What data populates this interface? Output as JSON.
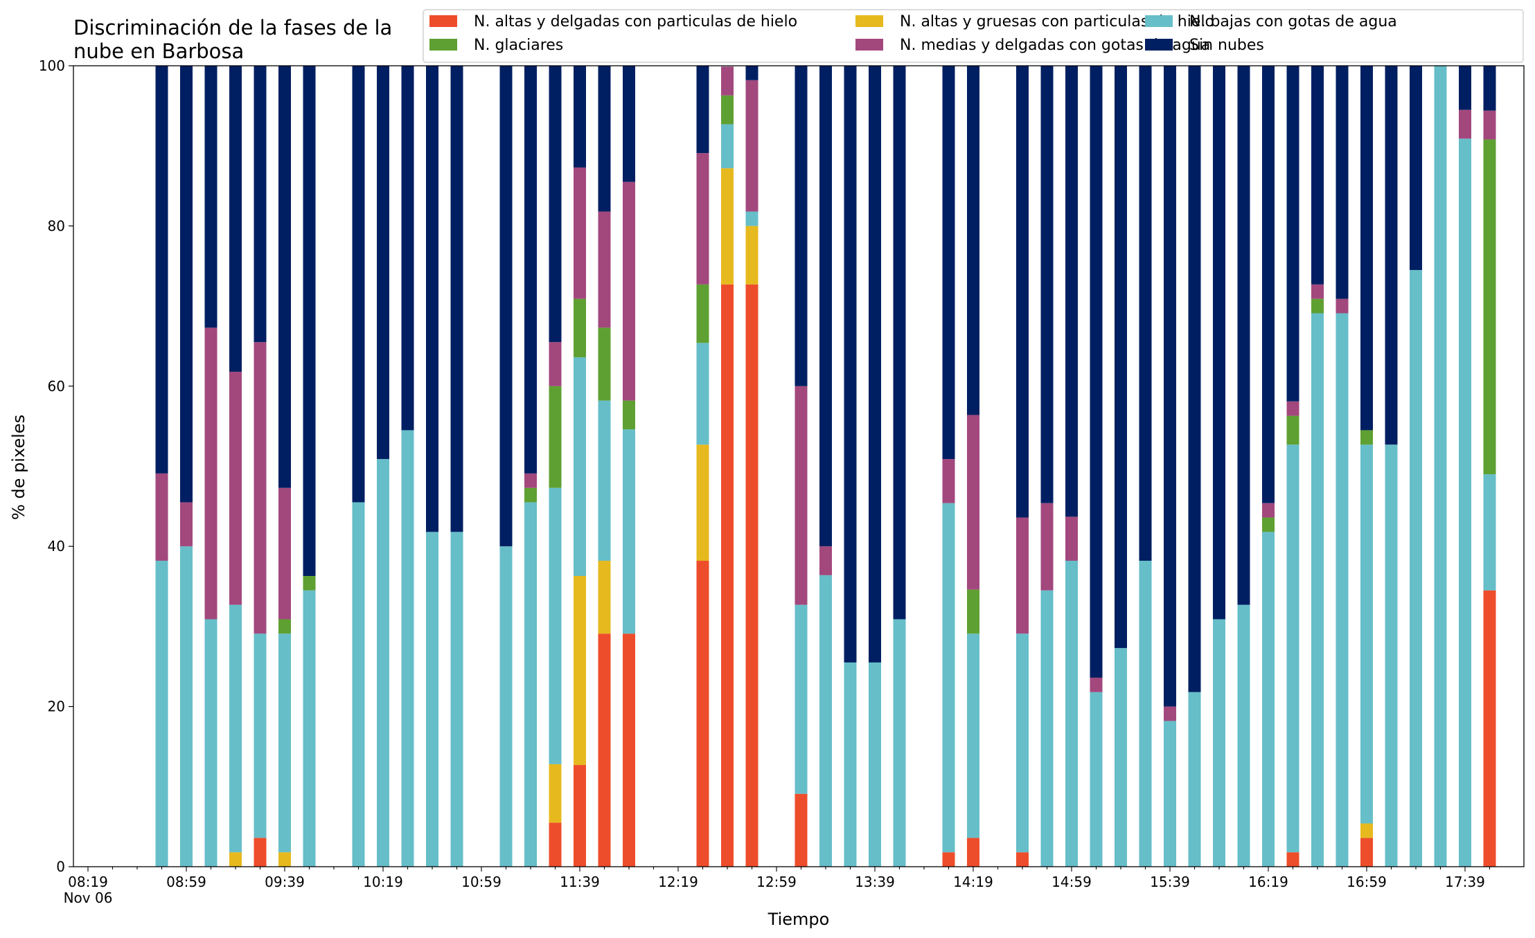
{
  "chart_data": {
    "type": "bar",
    "stacked": true,
    "title_lines": [
      "Discriminación de la fases de la",
      "nube en Barbosa"
    ],
    "xlabel": "Tiempo",
    "ylabel": "% de pixeles",
    "ylim": [
      0,
      100
    ],
    "yticks": [
      0,
      20,
      40,
      60,
      80,
      100
    ],
    "x_tick_labels": [
      "08:19",
      "08:59",
      "09:39",
      "10:19",
      "10:59",
      "11:39",
      "12:19",
      "12:59",
      "13:39",
      "14:19",
      "14:59",
      "15:39",
      "16:19",
      "16:59",
      "17:39"
    ],
    "x_tick_sublabel": "Nov 06",
    "x_slot_count": 58,
    "x_label_every": 4,
    "legend_position": "top-right",
    "legend_columns": 3,
    "series": [
      {
        "name": "N. altas y delgadas con particulas de hielo",
        "color": "#ee4d2b"
      },
      {
        "name": "N. altas y gruesas con particulas de hielo",
        "color": "#e6b91e"
      },
      {
        "name": "N. bajas con gotas de agua",
        "color": "#66bec9"
      },
      {
        "name": "N. glaciares",
        "color": "#5fa032"
      },
      {
        "name": "N. medias y delgadas con gotas de agua",
        "color": "#a2487d"
      },
      {
        "name": "Sin nubes",
        "color": "#001f62"
      }
    ],
    "bars": [
      {
        "slot": 3,
        "values": [
          0,
          0,
          38.2,
          0,
          10.9,
          50.9
        ]
      },
      {
        "slot": 4,
        "values": [
          0,
          0,
          40,
          0,
          5.5,
          54.5
        ]
      },
      {
        "slot": 5,
        "values": [
          0,
          0,
          30.9,
          0,
          36.4,
          32.7
        ]
      },
      {
        "slot": 6,
        "values": [
          0,
          1.8,
          30.9,
          0,
          29.1,
          38.2
        ]
      },
      {
        "slot": 7,
        "values": [
          3.6,
          0,
          25.5,
          0,
          36.4,
          34.5
        ]
      },
      {
        "slot": 8,
        "values": [
          0,
          1.8,
          27.3,
          1.8,
          16.4,
          52.7
        ]
      },
      {
        "slot": 9,
        "values": [
          0,
          0,
          34.5,
          1.8,
          0,
          63.7
        ]
      },
      {
        "slot": 11,
        "values": [
          0,
          0,
          45.5,
          0,
          0,
          54.5
        ]
      },
      {
        "slot": 12,
        "values": [
          0,
          0,
          50.9,
          0,
          0,
          49.1
        ]
      },
      {
        "slot": 13,
        "values": [
          0,
          0,
          54.5,
          0,
          0,
          45.5
        ]
      },
      {
        "slot": 14,
        "values": [
          0,
          0,
          41.8,
          0,
          0,
          58.2
        ]
      },
      {
        "slot": 15,
        "values": [
          0,
          0,
          41.8,
          0,
          0,
          58.2
        ]
      },
      {
        "slot": 17,
        "values": [
          0,
          0,
          40,
          0,
          0,
          60
        ]
      },
      {
        "slot": 18,
        "values": [
          0,
          0,
          45.5,
          1.8,
          1.8,
          50.9
        ]
      },
      {
        "slot": 19,
        "values": [
          5.5,
          7.3,
          34.5,
          12.7,
          5.5,
          34.5
        ]
      },
      {
        "slot": 20,
        "values": [
          12.7,
          23.6,
          27.3,
          7.3,
          16.4,
          12.7
        ]
      },
      {
        "slot": 21,
        "values": [
          29.1,
          9.1,
          20,
          9.1,
          14.5,
          18.2
        ]
      },
      {
        "slot": 22,
        "values": [
          29.1,
          0,
          25.5,
          3.6,
          27.3,
          14.5
        ]
      },
      {
        "slot": 25,
        "values": [
          38.2,
          14.5,
          12.7,
          7.3,
          16.4,
          10.9
        ]
      },
      {
        "slot": 26,
        "values": [
          72.7,
          14.5,
          5.5,
          3.6,
          3.6,
          0
        ]
      },
      {
        "slot": 27,
        "values": [
          72.7,
          7.3,
          1.8,
          0,
          16.4,
          1.8
        ]
      },
      {
        "slot": 29,
        "values": [
          9.1,
          0,
          23.6,
          0,
          27.3,
          40
        ]
      },
      {
        "slot": 30,
        "values": [
          0,
          0,
          36.4,
          0,
          3.6,
          60
        ]
      },
      {
        "slot": 31,
        "values": [
          0,
          0,
          25.5,
          0,
          0,
          74.5
        ]
      },
      {
        "slot": 32,
        "values": [
          0,
          0,
          25.5,
          0,
          0,
          74.5
        ]
      },
      {
        "slot": 33,
        "values": [
          0,
          0,
          30.9,
          0,
          0,
          69.1
        ]
      },
      {
        "slot": 35,
        "values": [
          1.8,
          0,
          43.6,
          0,
          5.5,
          49.1
        ]
      },
      {
        "slot": 36,
        "values": [
          3.6,
          0,
          25.5,
          5.5,
          21.8,
          43.6
        ]
      },
      {
        "slot": 38,
        "values": [
          1.8,
          0,
          27.3,
          0,
          14.5,
          56.4
        ]
      },
      {
        "slot": 39,
        "values": [
          0,
          0,
          34.5,
          0,
          10.9,
          54.6
        ]
      },
      {
        "slot": 40,
        "values": [
          0,
          0,
          38.2,
          0,
          5.5,
          56.3
        ]
      },
      {
        "slot": 41,
        "values": [
          0,
          0,
          21.8,
          0,
          1.8,
          76.4
        ]
      },
      {
        "slot": 42,
        "values": [
          0,
          0,
          27.3,
          0,
          0,
          72.7
        ]
      },
      {
        "slot": 43,
        "values": [
          0,
          0,
          38.2,
          0,
          0,
          61.8
        ]
      },
      {
        "slot": 44,
        "values": [
          0,
          0,
          18.2,
          0,
          1.8,
          80
        ]
      },
      {
        "slot": 45,
        "values": [
          0,
          0,
          21.8,
          0,
          0,
          78.2
        ]
      },
      {
        "slot": 46,
        "values": [
          0,
          0,
          30.9,
          0,
          0,
          69.1
        ]
      },
      {
        "slot": 47,
        "values": [
          0,
          0,
          32.7,
          0,
          0,
          67.3
        ]
      },
      {
        "slot": 48,
        "values": [
          0,
          0,
          41.8,
          1.8,
          1.8,
          54.6
        ]
      },
      {
        "slot": 49,
        "values": [
          1.8,
          0,
          50.9,
          3.6,
          1.8,
          41.9
        ]
      },
      {
        "slot": 50,
        "values": [
          0,
          0,
          69.1,
          1.8,
          1.8,
          27.3
        ]
      },
      {
        "slot": 51,
        "values": [
          0,
          0,
          69.1,
          0,
          1.8,
          29.1
        ]
      },
      {
        "slot": 52,
        "values": [
          3.6,
          1.8,
          47.3,
          1.8,
          0,
          45.5
        ]
      },
      {
        "slot": 53,
        "values": [
          0,
          0,
          52.7,
          0,
          0,
          47.3
        ]
      },
      {
        "slot": 54,
        "values": [
          0,
          0,
          74.5,
          0,
          0,
          25.5
        ]
      },
      {
        "slot": 55,
        "values": [
          0,
          0,
          100,
          0,
          0,
          0
        ]
      },
      {
        "slot": 56,
        "values": [
          0,
          0,
          90.9,
          0,
          3.6,
          5.5
        ]
      },
      {
        "slot": 57,
        "values": [
          34.5,
          0,
          14.5,
          41.8,
          3.6,
          5.6
        ]
      }
    ]
  }
}
